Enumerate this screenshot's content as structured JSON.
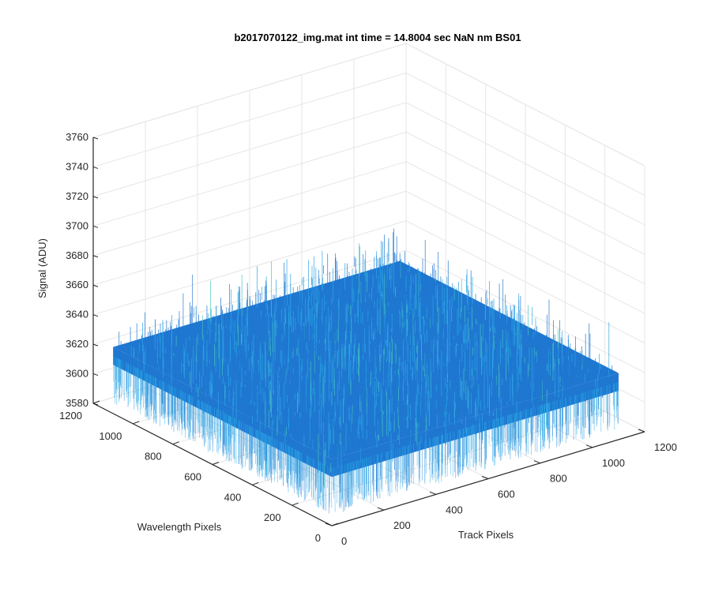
{
  "chart_data": {
    "type": "surface",
    "title": "b2017070122_img.mat int time = 14.8004 sec  NaN nm BS01",
    "xlabel": "Track Pixels",
    "ylabel": "Wavelength Pixels",
    "zlabel": "Signal (ADU)",
    "xlim": [
      0,
      1200
    ],
    "ylim": [
      0,
      1200
    ],
    "zlim": [
      3580,
      3760
    ],
    "xticks": [
      "0",
      "200",
      "400",
      "600",
      "800",
      "1000",
      "1200"
    ],
    "yticks": [
      "0",
      "200",
      "400",
      "600",
      "800",
      "1000",
      "1200"
    ],
    "zticks": [
      "3580",
      "3600",
      "3620",
      "3640",
      "3660",
      "3680",
      "3700",
      "3720",
      "3740",
      "3760"
    ],
    "surface": {
      "x_range": [
        0,
        1100
      ],
      "y_range": [
        0,
        1100
      ],
      "mean_level": 3625,
      "noise_min": 3595,
      "noise_max": 3665
    },
    "grid": true,
    "colors": {
      "surface_main": "#1f77d0",
      "surface_light": "#2aa6e6",
      "surface_accent": "#45c4c0",
      "axis": "#262626",
      "grid": "#e6e6e6"
    }
  }
}
